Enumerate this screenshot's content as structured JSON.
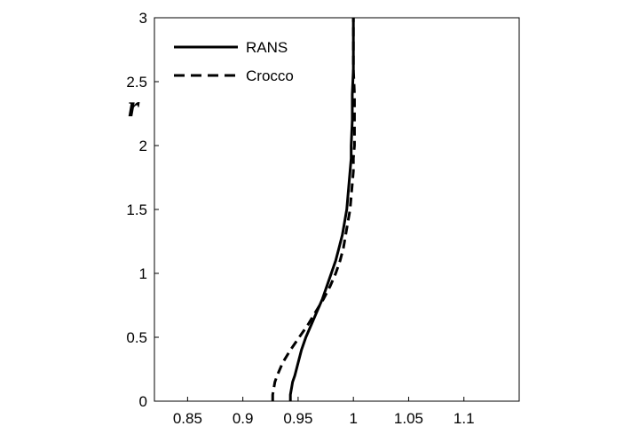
{
  "chart_data": {
    "type": "line",
    "title": "",
    "xlabel": "",
    "ylabel": "r",
    "xlim": [
      0.82,
      1.15
    ],
    "ylim": [
      0,
      3
    ],
    "xticks": [
      "0.85",
      "0.9",
      "0.95",
      "1",
      "1.05",
      "1.1"
    ],
    "yticks": [
      "0",
      "0.5",
      "1",
      "1.5",
      "2",
      "2.5",
      "3"
    ],
    "grid": false,
    "legend_position": "top-left",
    "series": [
      {
        "name": "RANS",
        "style": "solid",
        "points": [
          [
            0.943,
            0.0
          ],
          [
            0.943,
            0.05
          ],
          [
            0.944,
            0.1
          ],
          [
            0.945,
            0.15
          ],
          [
            0.947,
            0.2
          ],
          [
            0.95,
            0.3
          ],
          [
            0.953,
            0.4
          ],
          [
            0.957,
            0.5
          ],
          [
            0.962,
            0.6
          ],
          [
            0.967,
            0.7
          ],
          [
            0.972,
            0.8
          ],
          [
            0.976,
            0.9
          ],
          [
            0.98,
            1.0
          ],
          [
            0.984,
            1.1
          ],
          [
            0.987,
            1.2
          ],
          [
            0.99,
            1.3
          ],
          [
            0.992,
            1.4
          ],
          [
            0.994,
            1.5
          ],
          [
            0.995,
            1.6
          ],
          [
            0.996,
            1.7
          ],
          [
            0.997,
            1.8
          ],
          [
            0.998,
            1.9
          ],
          [
            0.998,
            2.0
          ],
          [
            0.999,
            2.2
          ],
          [
            0.999,
            2.4
          ],
          [
            1.0,
            2.6
          ],
          [
            1.0,
            2.8
          ],
          [
            1.0,
            3.0
          ]
        ]
      },
      {
        "name": "Crocco",
        "style": "dashed",
        "points": [
          [
            0.927,
            0.0
          ],
          [
            0.927,
            0.05
          ],
          [
            0.928,
            0.1
          ],
          [
            0.929,
            0.15
          ],
          [
            0.931,
            0.2
          ],
          [
            0.936,
            0.3
          ],
          [
            0.943,
            0.4
          ],
          [
            0.951,
            0.5
          ],
          [
            0.959,
            0.6
          ],
          [
            0.966,
            0.7
          ],
          [
            0.973,
            0.8
          ],
          [
            0.979,
            0.9
          ],
          [
            0.984,
            1.0
          ],
          [
            0.988,
            1.1
          ],
          [
            0.991,
            1.2
          ],
          [
            0.993,
            1.3
          ],
          [
            0.995,
            1.4
          ],
          [
            0.997,
            1.5
          ],
          [
            0.998,
            1.6
          ],
          [
            0.999,
            1.7
          ],
          [
            1.0,
            1.8
          ],
          [
            1.0,
            1.9
          ],
          [
            1.001,
            2.0
          ],
          [
            1.001,
            2.2
          ],
          [
            1.001,
            2.4
          ],
          [
            1.0,
            2.6
          ],
          [
            1.0,
            2.8
          ],
          [
            1.0,
            3.0
          ]
        ]
      }
    ]
  }
}
